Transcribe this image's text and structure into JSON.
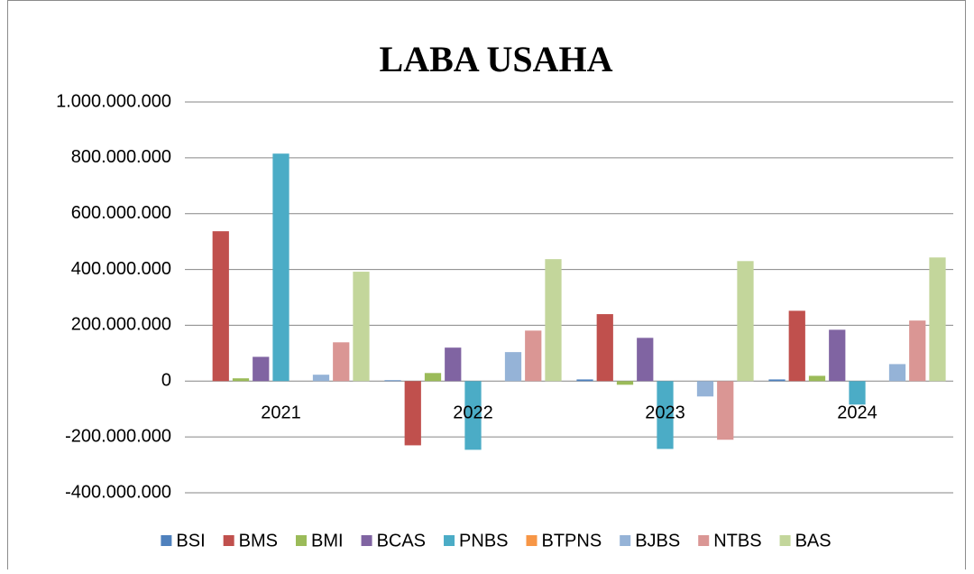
{
  "chart_data": {
    "type": "bar",
    "title": "LABA USAHA",
    "categories": [
      "2021",
      "2022",
      "2023",
      "2024"
    ],
    "series": [
      {
        "name": "BSI",
        "color": "#4f81bd",
        "values": [
          0,
          3000000,
          6000000,
          6000000
        ]
      },
      {
        "name": "BMS",
        "color": "#c0504d",
        "values": [
          537000000,
          -230000000,
          240000000,
          252000000
        ]
      },
      {
        "name": "BMI",
        "color": "#9bbb59",
        "values": [
          10000000,
          29000000,
          -13000000,
          19000000
        ]
      },
      {
        "name": "BCAS",
        "color": "#8064a2",
        "values": [
          87000000,
          120000000,
          155000000,
          184000000
        ]
      },
      {
        "name": "PNBS",
        "color": "#4bacc6",
        "values": [
          815000000,
          -246000000,
          -243000000,
          -84000000
        ]
      },
      {
        "name": "BTPNS",
        "color": "#f79646",
        "values": [
          0,
          0,
          0,
          0
        ]
      },
      {
        "name": "BJBS",
        "color": "#95b3d7",
        "values": [
          23000000,
          104000000,
          -55000000,
          61000000
        ]
      },
      {
        "name": "NTBS",
        "color": "#da9694",
        "values": [
          139000000,
          181000000,
          -210000000,
          217000000
        ]
      },
      {
        "name": "BAS",
        "color": "#c3d69b",
        "values": [
          392000000,
          437000000,
          430000000,
          443000000
        ]
      }
    ],
    "ylim": [
      -400000000,
      1000000000
    ],
    "yticks": [
      {
        "value": -400000000,
        "label": "-400.000.000"
      },
      {
        "value": -200000000,
        "label": "-200.000.000"
      },
      0,
      {
        "value": 200000000,
        "label": "200.000.000"
      },
      {
        "value": 400000000,
        "label": "400.000.000"
      },
      {
        "value": 600000000,
        "label": "600.000.000"
      },
      {
        "value": 800000000,
        "label": "800.000.000"
      },
      {
        "value": 1000000000,
        "label": "1.000.000.000"
      }
    ],
    "grid": true,
    "legend": "bottom"
  }
}
